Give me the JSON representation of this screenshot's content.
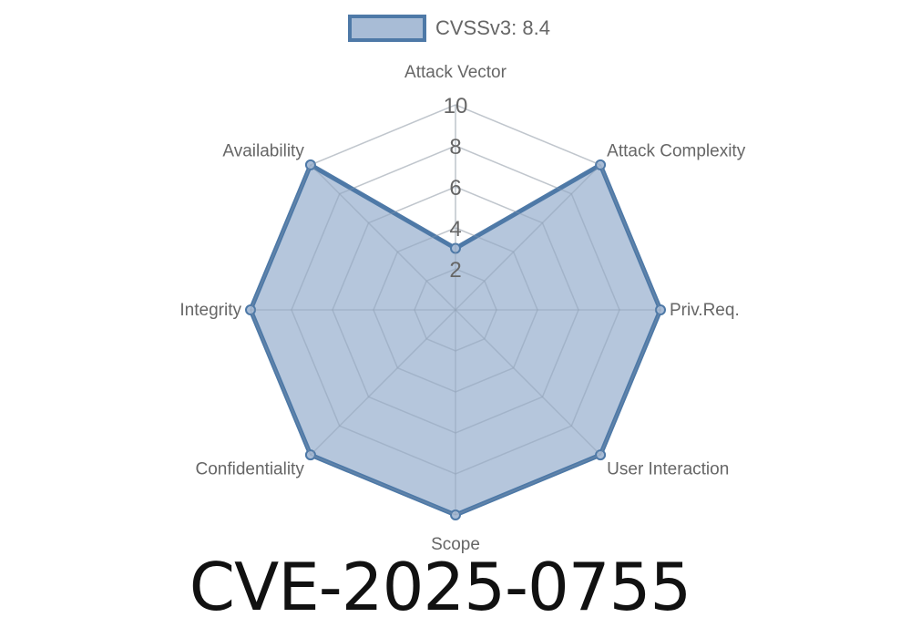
{
  "title": "CVE-2025-0755",
  "chart_data": {
    "type": "radar",
    "axes": [
      "Attack Vector",
      "Attack Complexity",
      "Priv.Req.",
      "User Interaction",
      "Scope",
      "Confidentiality",
      "Integrity",
      "Availability"
    ],
    "series": [
      {
        "name": "CVSSv3: 8.4",
        "values": [
          3,
          10,
          10,
          10,
          10,
          10,
          10,
          10
        ]
      }
    ],
    "radial_range": [
      0,
      10
    ],
    "radial_ticks": [
      "2",
      "4",
      "6",
      "8",
      "10"
    ],
    "grid": true,
    "legend": "top",
    "colors": {
      "line": "#4e79a7",
      "fill": "#a8bcd6",
      "grid": "#dddddd",
      "label": "#666666"
    }
  }
}
